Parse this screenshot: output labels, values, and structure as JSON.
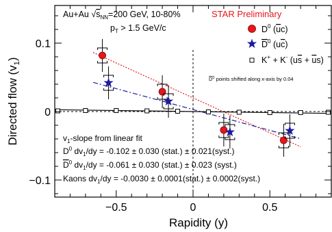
{
  "chart_data": {
    "type": "scatter",
    "xlabel": "Rapidity (y)",
    "ylabel": "Directed flow (v1)",
    "xlim": [
      -0.9,
      0.9
    ],
    "ylim": [
      -0.125,
      0.155
    ],
    "xticks": [
      "−0.5",
      "0",
      "0.5"
    ],
    "xtick_values": [
      -0.5,
      0,
      0.5
    ],
    "yticks": [
      "0.1",
      "0",
      "−0.1"
    ],
    "ytick_values": [
      0.1,
      0,
      -0.1
    ],
    "grid": false,
    "legend_position": "top-right",
    "annotations": {
      "system": "Au+Au √sNN=200 GeV, 10-80%",
      "pt_cut": "pT > 1.5 GeV/c",
      "preliminary": "STAR Preliminary",
      "shift_note": "D0 points shifted along x-axis by 0.04",
      "fit_header": "v1-slope from linear fit",
      "fit_d0": "D0 dv1/dy = -0.102 ± 0.030 (stat.) ± 0.021(syst.)",
      "fit_d0bar": "D0 dv1/dy = -0.061 ± 0.030 (stat.) ± 0.023 (syst.)",
      "fit_kaons": "Kaons dv1/dy = -0.0030 ± 0.0001(stat.) ± 0.0002(syst.)"
    },
    "series": [
      {
        "name": "D0 (ūc)",
        "marker": "circle",
        "color": "#e8151b",
        "points": [
          {
            "x": -0.59,
            "y": 0.082,
            "stat": 0.024,
            "syst": 0.011
          },
          {
            "x": -0.2,
            "y": 0.029,
            "stat": 0.024,
            "syst": 0.011
          },
          {
            "x": 0.2,
            "y": -0.027,
            "stat": 0.024,
            "syst": 0.011
          },
          {
            "x": 0.59,
            "y": -0.042,
            "stat": 0.024,
            "syst": 0.011
          }
        ]
      },
      {
        "name": "D0bar (uc̄)",
        "marker": "star",
        "color": "#1a1aa0",
        "points": [
          {
            "x": -0.55,
            "y": 0.042,
            "stat": 0.024,
            "syst": 0.011
          },
          {
            "x": -0.16,
            "y": 0.015,
            "stat": 0.024,
            "syst": 0.011
          },
          {
            "x": 0.24,
            "y": -0.03,
            "stat": 0.024,
            "syst": 0.011
          },
          {
            "x": 0.63,
            "y": -0.028,
            "stat": 0.024,
            "syst": 0.011
          }
        ]
      },
      {
        "name": "K+ + K- (us̄ + ūs)",
        "marker": "open-square",
        "color": "#000000",
        "points": [
          {
            "x": -0.88,
            "y": 0.001
          },
          {
            "x": -0.7,
            "y": 0.0015
          },
          {
            "x": -0.5,
            "y": 0.0015
          },
          {
            "x": -0.3,
            "y": 0.001
          },
          {
            "x": -0.1,
            "y": 0.0005
          },
          {
            "x": 0.1,
            "y": -0.0005
          },
          {
            "x": 0.3,
            "y": -0.001
          },
          {
            "x": 0.5,
            "y": -0.0015
          },
          {
            "x": 0.7,
            "y": -0.0015
          },
          {
            "x": 0.88,
            "y": -0.001
          }
        ]
      }
    ],
    "fits": [
      {
        "name": "D0 fit",
        "slope": -0.102,
        "intercept": 0.02,
        "x_range": [
          -0.65,
          0.7
        ],
        "color": "#e8151b",
        "style": "dotted"
      },
      {
        "name": "D0bar fit",
        "slope": -0.061,
        "intercept": 0.003,
        "x_range": [
          -0.65,
          0.7
        ],
        "color": "#1a1aa0",
        "style": "dashdot"
      },
      {
        "name": "Kaon fit",
        "slope": -0.003,
        "intercept": 0.0,
        "x_range": [
          -0.9,
          0.9
        ],
        "color": "#000000",
        "style": "solid"
      }
    ]
  }
}
